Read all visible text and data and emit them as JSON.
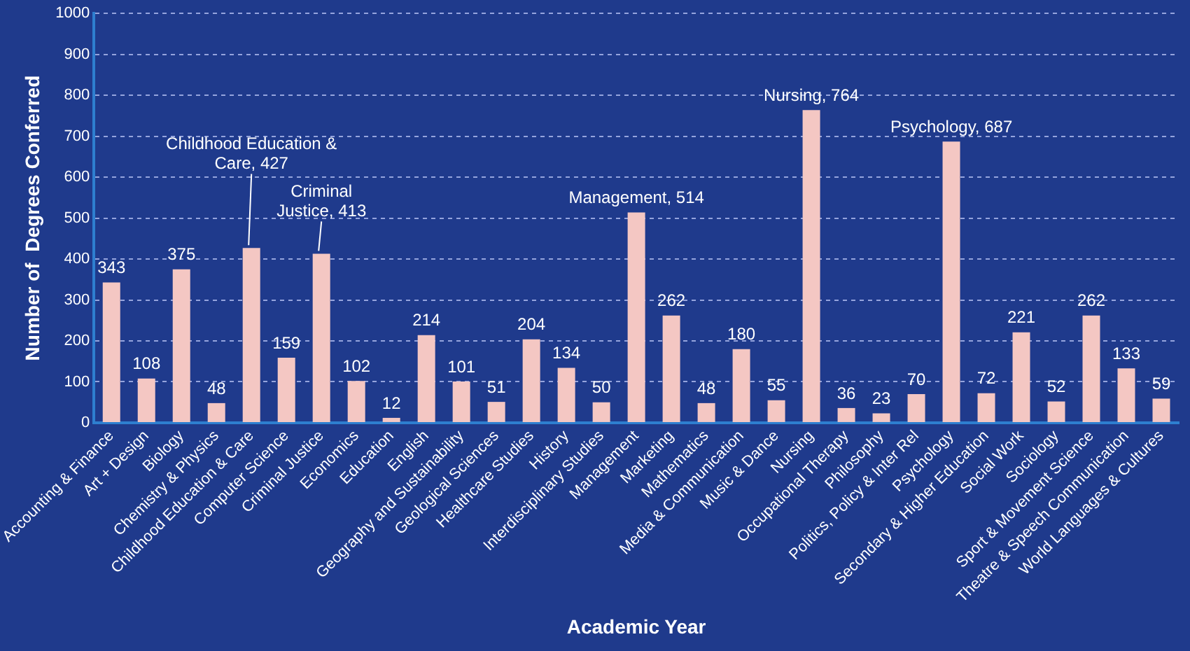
{
  "chart_data": {
    "type": "bar",
    "xlabel": "Academic Year",
    "ylabel": "Number of  Degrees Conferred",
    "categories": [
      "Accounting & Finance",
      "Art + Design",
      "Biology",
      "Chemistry & Physics",
      "Childhood Education & Care",
      "Computer Science",
      "Criminal Justice",
      "Economics",
      "Education",
      "English",
      "Geography and Sustainability",
      "Geological Sciences",
      "Healthcare Studies",
      "History",
      "Interdisciplinary Studies",
      "Management",
      "Marketing",
      "Mathematics",
      "Media & Communication",
      "Music & Dance",
      "Nursing",
      "Occupational Therapy",
      "Philosophy",
      "Politics, Policy & Inter Rel",
      "Psychology",
      "Secondary & Higher Education",
      "Social Work",
      "Sociology",
      "Sport & Movement Science",
      "Theatre & Speech Communication",
      "World Languages & Cultures"
    ],
    "values": [
      343,
      108,
      375,
      48,
      427,
      159,
      413,
      102,
      12,
      214,
      101,
      51,
      204,
      134,
      50,
      514,
      262,
      48,
      180,
      55,
      764,
      36,
      23,
      70,
      687,
      72,
      221,
      52,
      262,
      133,
      59
    ],
    "value_labels": [
      "343",
      "108",
      "375",
      "48",
      "Childhood Education &\nCare, 427",
      "159",
      "Criminal\nJustice, 413",
      "102",
      "12",
      "214",
      "101",
      "51",
      "204",
      "134",
      "50",
      "Management, 514",
      "262",
      "48",
      "180",
      "55",
      "Nursing, 764",
      "36",
      "23",
      "70",
      "Psychology, 687",
      "72",
      "221",
      "52",
      "262",
      "133",
      "59"
    ],
    "color": "#f4c7c3",
    "ylim": [
      0,
      1000
    ],
    "yticks": [
      0,
      100,
      200,
      300,
      400,
      500,
      600,
      700,
      800,
      900,
      1000
    ],
    "grid": "y"
  }
}
